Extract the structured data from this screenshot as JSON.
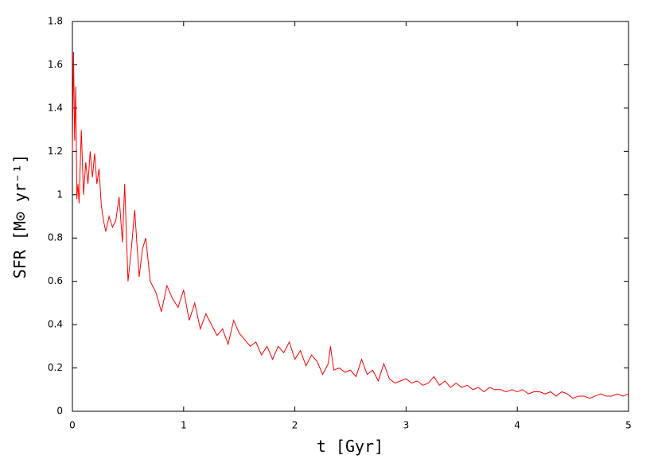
{
  "chart_data": {
    "type": "line",
    "xlabel": "t [Gyr]",
    "ylabel": "SFR [M⊙ yr⁻¹]",
    "x": [
      0,
      0.01,
      0.02,
      0.03,
      0.04,
      0.05,
      0.06,
      0.08,
      0.1,
      0.12,
      0.14,
      0.16,
      0.18,
      0.2,
      0.22,
      0.24,
      0.26,
      0.28,
      0.3,
      0.33,
      0.36,
      0.39,
      0.42,
      0.45,
      0.47,
      0.5,
      0.53,
      0.56,
      0.6,
      0.63,
      0.66,
      0.7,
      0.75,
      0.8,
      0.85,
      0.9,
      0.95,
      1.0,
      1.05,
      1.1,
      1.15,
      1.2,
      1.25,
      1.3,
      1.35,
      1.4,
      1.45,
      1.5,
      1.55,
      1.6,
      1.65,
      1.7,
      1.75,
      1.8,
      1.85,
      1.9,
      1.95,
      2.0,
      2.05,
      2.1,
      2.15,
      2.2,
      2.25,
      2.3,
      2.32,
      2.35,
      2.4,
      2.45,
      2.5,
      2.55,
      2.6,
      2.65,
      2.7,
      2.75,
      2.8,
      2.85,
      2.9,
      2.95,
      3.0,
      3.05,
      3.1,
      3.15,
      3.2,
      3.25,
      3.3,
      3.35,
      3.4,
      3.45,
      3.5,
      3.55,
      3.6,
      3.65,
      3.7,
      3.75,
      3.8,
      3.85,
      3.9,
      3.95,
      4.0,
      4.05,
      4.1,
      4.15,
      4.2,
      4.25,
      4.3,
      4.35,
      4.4,
      4.45,
      4.5,
      4.55,
      4.6,
      4.65,
      4.7,
      4.75,
      4.8,
      4.85,
      4.9,
      4.95,
      5.0
    ],
    "series": [
      {
        "color": "#ff0000",
        "values": [
          1.2,
          1.66,
          1.25,
          1.5,
          0.98,
          1.05,
          0.96,
          1.3,
          1.0,
          1.15,
          1.05,
          1.2,
          1.08,
          1.19,
          1.05,
          1.12,
          0.95,
          0.88,
          0.83,
          0.9,
          0.85,
          0.88,
          0.99,
          0.78,
          1.05,
          0.6,
          0.75,
          0.93,
          0.62,
          0.75,
          0.8,
          0.6,
          0.55,
          0.46,
          0.58,
          0.52,
          0.48,
          0.56,
          0.42,
          0.5,
          0.38,
          0.45,
          0.4,
          0.35,
          0.38,
          0.31,
          0.42,
          0.36,
          0.33,
          0.3,
          0.32,
          0.26,
          0.3,
          0.24,
          0.3,
          0.27,
          0.32,
          0.24,
          0.28,
          0.21,
          0.26,
          0.23,
          0.17,
          0.22,
          0.3,
          0.19,
          0.2,
          0.18,
          0.19,
          0.16,
          0.24,
          0.17,
          0.19,
          0.14,
          0.22,
          0.15,
          0.13,
          0.14,
          0.15,
          0.13,
          0.14,
          0.12,
          0.13,
          0.16,
          0.12,
          0.14,
          0.11,
          0.13,
          0.11,
          0.12,
          0.1,
          0.11,
          0.09,
          0.11,
          0.1,
          0.1,
          0.09,
          0.1,
          0.09,
          0.1,
          0.08,
          0.09,
          0.09,
          0.08,
          0.09,
          0.07,
          0.09,
          0.08,
          0.06,
          0.07,
          0.07,
          0.06,
          0.07,
          0.08,
          0.07,
          0.07,
          0.08,
          0.07,
          0.08
        ]
      }
    ],
    "xlim": [
      0,
      5
    ],
    "xticks": [
      0,
      1,
      2,
      3,
      4,
      5
    ],
    "ylim": [
      0,
      1.8
    ],
    "yticks": [
      0,
      0.2,
      0.4,
      0.6,
      0.8,
      1,
      1.2,
      1.4,
      1.6,
      1.8
    ]
  }
}
